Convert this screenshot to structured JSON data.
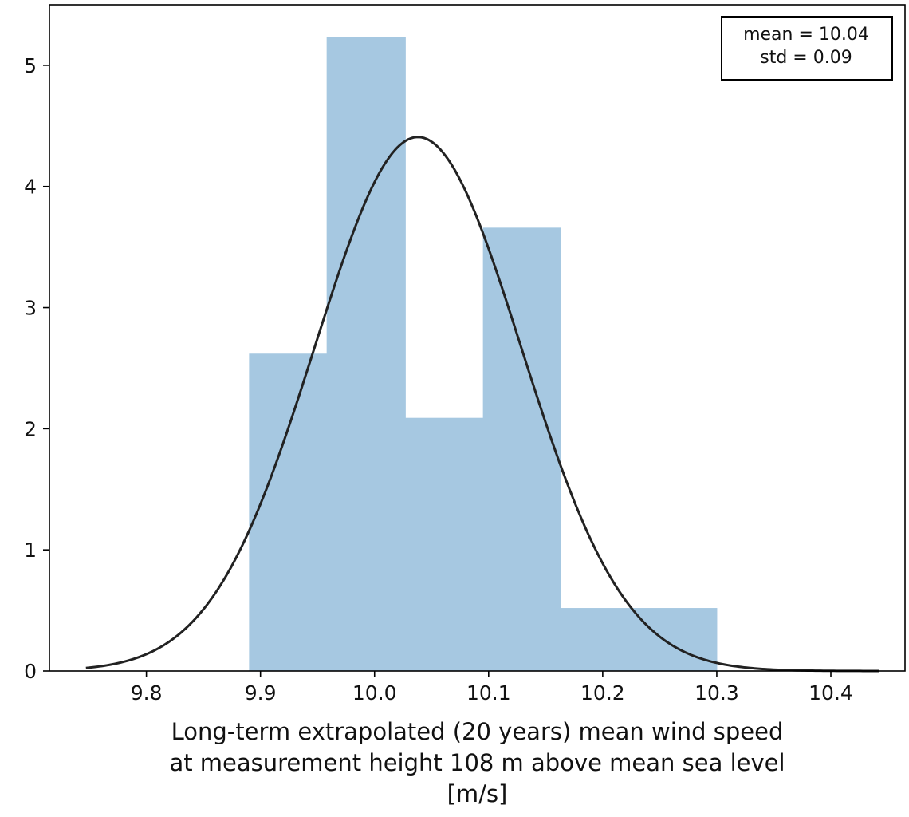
{
  "chart_data": {
    "type": "bar",
    "title": "",
    "xlabel_lines": [
      "Long-term extrapolated (20 years) mean wind speed",
      "at measurement height 108 m above mean sea level",
      "[m/s]"
    ],
    "ylabel": "",
    "xlim": [
      9.715,
      10.465
    ],
    "ylim": [
      0,
      5.5
    ],
    "grid": false,
    "x_ticks": [
      9.8,
      9.9,
      10.0,
      10.1,
      10.2,
      10.3,
      10.4
    ],
    "x_tick_labels": [
      "9.8",
      "9.9",
      "10.0",
      "10.1",
      "10.2",
      "10.3",
      "10.4"
    ],
    "y_ticks": [
      0,
      1,
      2,
      3,
      4,
      5
    ],
    "y_tick_labels": [
      "0",
      "1",
      "2",
      "3",
      "4",
      "5"
    ],
    "histogram": {
      "bin_edges": [
        9.89,
        9.958,
        10.027,
        10.095,
        10.163,
        10.232,
        10.3
      ],
      "values": [
        2.62,
        5.23,
        2.09,
        3.66,
        0.52,
        0.52
      ],
      "color": "#a6c8e1"
    },
    "fit_curve": {
      "kind": "normal-pdf",
      "mean": 10.038,
      "std": 0.0905,
      "x_range": [
        9.747,
        10.442
      ],
      "color": "#222222"
    },
    "legend": {
      "position": "top-right",
      "lines": [
        "mean = 10.04",
        "std = 0.09"
      ]
    }
  }
}
